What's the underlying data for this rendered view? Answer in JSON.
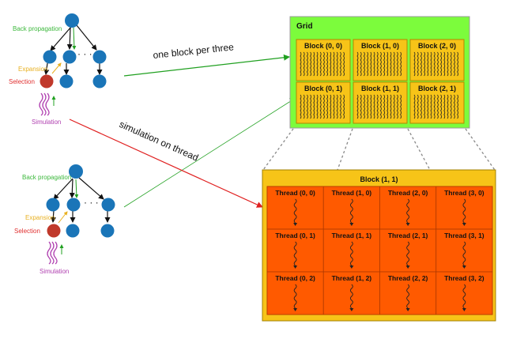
{
  "trees": [
    {
      "back_propagation": "Back propagation",
      "expansion": "Expansion",
      "selection": "Selection",
      "simulation": "Simulation",
      "ellipsis": "· · ·"
    },
    {
      "back_propagation": "Back propagation",
      "expansion": "Expansion",
      "selection": "Selection",
      "simulation": "Simulation",
      "ellipsis": "· · ·"
    }
  ],
  "captions": {
    "one_block": "one block per three",
    "simulation_thread": "simulation on thread"
  },
  "grid": {
    "title": "Grid",
    "blocks": [
      "Block (0, 0)",
      "Block (1, 0)",
      "Block (2, 0)",
      "Block (0, 1)",
      "Block (1, 1)",
      "Block (2, 1)"
    ]
  },
  "block_detail": {
    "title": "Block (1, 1)",
    "threads": [
      "Thread (0, 0)",
      "Thread (1, 0)",
      "Thread (2, 0)",
      "Thread (3, 0)",
      "Thread (0, 1)",
      "Thread (1, 1)",
      "Thread (2, 1)",
      "Thread (3, 1)",
      "Thread (0, 2)",
      "Thread (1, 2)",
      "Thread (2, 2)",
      "Thread (3, 2)"
    ]
  },
  "colors": {
    "tree_node": "#1a75b8",
    "selected_node": "#c0392b",
    "grid_bg": "#7cfc3c",
    "block_fill": "#f7c418",
    "thread_fill": "#ff5a00",
    "arrow_green": "#20a020",
    "arrow_red": "#e02020"
  }
}
